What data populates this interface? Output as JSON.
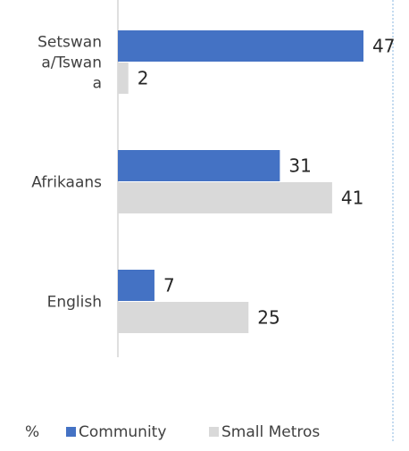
{
  "chart_data": {
    "type": "bar",
    "orientation": "horizontal",
    "categories": [
      "Setswan a/Tswan a",
      "Afrikaans",
      "English"
    ],
    "category_lines": [
      [
        "Setswan",
        "a/Tswan",
        "a"
      ],
      [
        "Afrikaans"
      ],
      [
        "English"
      ]
    ],
    "series": [
      {
        "name": "Community",
        "values": [
          47,
          31,
          7
        ],
        "color": "#4472C4"
      },
      {
        "name": "Small Metros",
        "values": [
          2,
          41,
          25
        ],
        "color": "#D9D9D9"
      }
    ],
    "xlim": [
      0,
      47
    ],
    "legend_prefix": "%",
    "legend_position": "bottom",
    "grid": false
  }
}
